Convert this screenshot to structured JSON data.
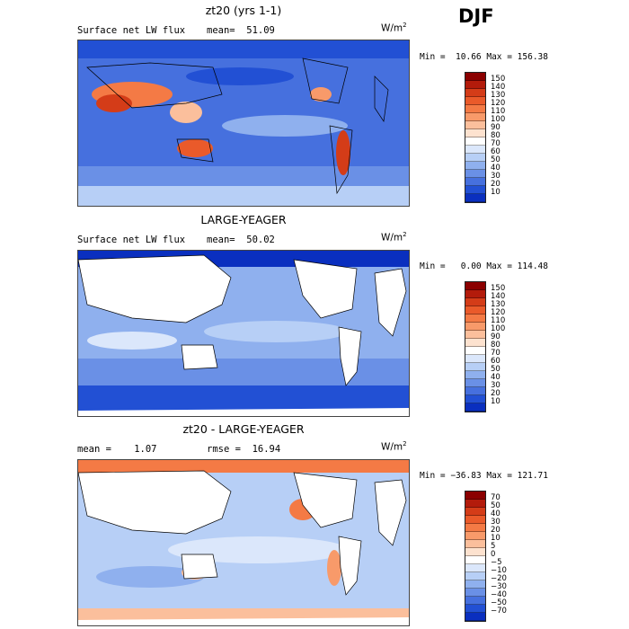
{
  "season": "DJF",
  "panels": [
    {
      "title": "zt20 (yrs 1-1)",
      "variable": "Surface net LW flux",
      "stat": "mean=  51.09",
      "units": "W/m",
      "units_sup": "2",
      "minmax": "Min =  10.66 Max = 156.38",
      "colorbar_labels": [
        "150",
        "140",
        "130",
        "120",
        "110",
        "100",
        "90",
        "80",
        "70",
        "60",
        "50",
        "40",
        "30",
        "20",
        "10"
      ],
      "colorbar_colors": [
        "#8b0000",
        "#b31b0b",
        "#d43c18",
        "#ea5a2a",
        "#f47a45",
        "#f89a6a",
        "#fbbf9c",
        "#fde2cf",
        "#ffffff",
        "#dbe7fb",
        "#b7cff6",
        "#8fb0ee",
        "#6a90e6",
        "#4670de",
        "#2250d4",
        "#0a2fbf"
      ],
      "chart_data": {
        "type": "heatmap",
        "title": "zt20 (yrs 1-1)",
        "variable": "Surface net LW flux",
        "units": "W/m^2",
        "mean": 51.09,
        "min": 10.66,
        "max": 156.38,
        "contour_levels": [
          10,
          20,
          30,
          40,
          50,
          60,
          70,
          80,
          90,
          100,
          110,
          120,
          130,
          140,
          150
        ]
      }
    },
    {
      "title": "LARGE-YEAGER",
      "variable": "Surface net LW flux",
      "stat": "mean=  50.02",
      "units": "W/m",
      "units_sup": "2",
      "minmax": "Min =   0.00 Max = 114.48",
      "colorbar_labels": [
        "150",
        "140",
        "130",
        "120",
        "110",
        "100",
        "90",
        "80",
        "70",
        "60",
        "50",
        "40",
        "30",
        "20",
        "10"
      ],
      "colorbar_colors": [
        "#8b0000",
        "#b31b0b",
        "#d43c18",
        "#ea5a2a",
        "#f47a45",
        "#f89a6a",
        "#fbbf9c",
        "#fde2cf",
        "#ffffff",
        "#dbe7fb",
        "#b7cff6",
        "#8fb0ee",
        "#6a90e6",
        "#4670de",
        "#2250d4",
        "#0a2fbf"
      ],
      "chart_data": {
        "type": "heatmap",
        "title": "LARGE-YEAGER",
        "variable": "Surface net LW flux",
        "units": "W/m^2",
        "mean": 50.02,
        "min": 0.0,
        "max": 114.48,
        "contour_levels": [
          10,
          20,
          30,
          40,
          50,
          60,
          70,
          80,
          90,
          100,
          110,
          120,
          130,
          140,
          150
        ]
      }
    },
    {
      "title": "zt20 - LARGE-YEAGER",
      "variable": "mean =    1.07",
      "stat": "rmse =  16.94",
      "units": "W/m",
      "units_sup": "2",
      "minmax": "Min = −36.83 Max = 121.71",
      "colorbar_labels": [
        "70",
        "50",
        "40",
        "30",
        "20",
        "10",
        "5",
        "0",
        "−5",
        "−10",
        "−20",
        "−30",
        "−40",
        "−50",
        "−70"
      ],
      "colorbar_colors": [
        "#8b0000",
        "#b31b0b",
        "#d43c18",
        "#ea5a2a",
        "#f47a45",
        "#f89a6a",
        "#fbbf9c",
        "#fde2cf",
        "#ffffff",
        "#dbe7fb",
        "#b7cff6",
        "#8fb0ee",
        "#6a90e6",
        "#4670de",
        "#2250d4",
        "#0a2fbf"
      ],
      "chart_data": {
        "type": "heatmap",
        "title": "zt20 - LARGE-YEAGER",
        "units": "W/m^2",
        "mean": 1.07,
        "rmse": 16.94,
        "min": -36.83,
        "max": 121.71,
        "contour_levels": [
          -70,
          -50,
          -40,
          -30,
          -20,
          -10,
          -5,
          0,
          5,
          10,
          20,
          30,
          40,
          50,
          70
        ]
      }
    }
  ]
}
